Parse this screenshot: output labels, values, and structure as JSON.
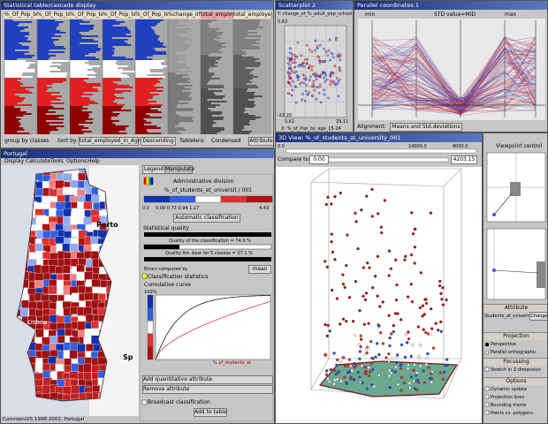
{
  "table_window": {
    "title": "Statistical table/cascade display",
    "columns": [
      "%_Of_Pop_ter_ab",
      "%_Of_Pop_ter_ab",
      "%_Of_Pop_ter_ab",
      "%_Of_Pop_ter_ab",
      "%_Of_Pop_ter_ab",
      "%change_of_CA",
      "total_employed",
      "total_employed_in"
    ],
    "group_by": "group by classes",
    "sort_by": "Sort by",
    "sort_attribute": "total_employed_in_Agricu",
    "order": "Descending",
    "tablelens": "Tablelens",
    "condensed": "Condensed",
    "attribute": "Attribute"
  },
  "scatter_window": {
    "title": "Scatterplot 2",
    "y_label": "Y: change_of_%_adult_pop_school",
    "x_label": "X: %_of_Pop_by_age_15-24",
    "y_max": "0.82",
    "y_min": "-22.20",
    "x_min": "0.62",
    "x_max": "29.11"
  },
  "parallel_window": {
    "title": "Parallel coordinates 1",
    "axis_labels": [
      "min",
      "STD value=MID",
      "max"
    ],
    "alignment_label": "Alignment:",
    "alignment": "Means and Std.deviations"
  },
  "map_window": {
    "title": "Portugal",
    "menu": [
      "Display",
      "Calculate",
      "Tools",
      "Options",
      "Help"
    ],
    "places": [
      "Porto",
      "Lisboa",
      "Sp"
    ],
    "status": "CommonGIS 1998-2002, Portugal"
  },
  "legend_panel": {
    "tabs": [
      "Legend",
      "Manipulate"
    ],
    "layer": "Administrative division",
    "attribute": "%_of_students_at_universit / 001",
    "range_min": "0.0",
    "range_max": "4.43",
    "breaks": "0.00 0.73 0.94 1.17",
    "auto_button": "Automatic classification",
    "quality_header": "Statistical quality",
    "quality": "Quality of the classification = 74.9 %",
    "quality_best": "Quality lim. best for 5 classes = 27.1 %",
    "errors_label": "Errors computed by",
    "errors_method": "mean",
    "stats_header": "Classification statistics",
    "curve_header": "Cumulative curve",
    "curve_top": "100%",
    "curve_axis": "% of_students_at",
    "add_attribute": "Add quantitative attribute",
    "remove_attribute": "Remove attribute",
    "broadcast": "Broadcast classification",
    "add_table": "Add to table"
  },
  "view3d": {
    "title": "3D View: %_of_students_at_university_001",
    "range_left": "0.0",
    "range_mid": "14000.0",
    "range_right": "4000.0",
    "compare_to": "Compare to",
    "compare_min": "0.00",
    "compare_max": "4203.15"
  },
  "side_panel": {
    "viewpoint": "Viewpoint control",
    "attribute_header": "Attribute",
    "attribute": "Students_at_univers",
    "change": "Change",
    "projection_header": "Projection",
    "perspective": "Perspective",
    "orthographic": "Parallel orthographic",
    "focusing_header": "Focussing",
    "stretch": "Stretch in Z-dimension",
    "options_header": "Options",
    "options": [
      "Dynamic update",
      "Projection lines",
      "Bounding frame",
      "Points vs. polygons"
    ]
  }
}
